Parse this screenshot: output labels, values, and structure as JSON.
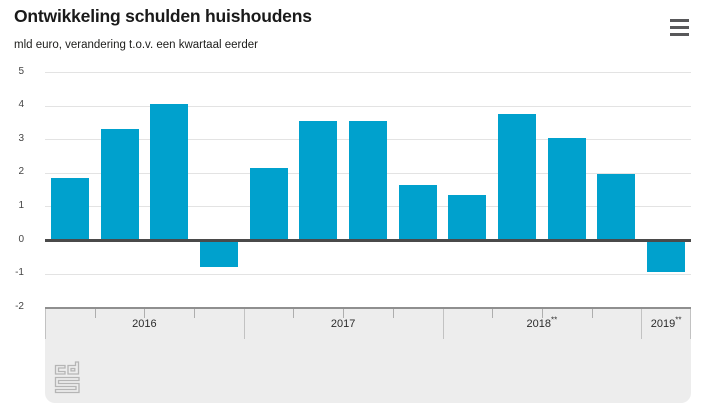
{
  "header": {
    "title": "Ontwikkeling schulden huishoudens",
    "subtitle": "mld euro, verandering t.o.v. een kwartaal eerder"
  },
  "menu": {
    "icon": "hamburger-menu-icon"
  },
  "chart_data": {
    "type": "bar",
    "title": "Ontwikkeling schulden huishoudens",
    "subtitle": "mld euro, verandering t.o.v. een kwartaal eerder",
    "ylabel": "mld euro, verandering t.o.v. een kwartaal eerder",
    "xlabel": "",
    "ylim": [
      -2,
      5
    ],
    "y_ticks": [
      5,
      4,
      3,
      2,
      1,
      0,
      -1,
      -2
    ],
    "grid": true,
    "legend_position": "none",
    "bar_color": "#00a1cd",
    "categories": [
      "2016 Q1",
      "2016 Q2",
      "2016 Q3",
      "2016 Q4",
      "2017 Q1",
      "2017 Q2",
      "2017 Q3",
      "2017 Q4",
      "2018 Q1",
      "2018 Q2",
      "2018 Q3",
      "2018 Q4",
      "2019 Q1"
    ],
    "values": [
      1.85,
      3.3,
      4.05,
      -0.8,
      2.15,
      3.55,
      3.55,
      1.65,
      1.35,
      3.75,
      3.05,
      1.95,
      -0.95
    ],
    "x_axis_groups": [
      {
        "label": "2016",
        "suffix": "",
        "quarters": 4
      },
      {
        "label": "2017",
        "suffix": "",
        "quarters": 4
      },
      {
        "label": "2018",
        "suffix": "**",
        "quarters": 4
      },
      {
        "label": "2019",
        "suffix": "**",
        "quarters": 1
      }
    ]
  },
  "colors": {
    "bar": "#00a1cd",
    "zero_line": "#4a4a4a",
    "axis_band_background": "#ededed",
    "text": "#1a1a1a"
  },
  "footer": {
    "logo": "cbs-logo"
  }
}
